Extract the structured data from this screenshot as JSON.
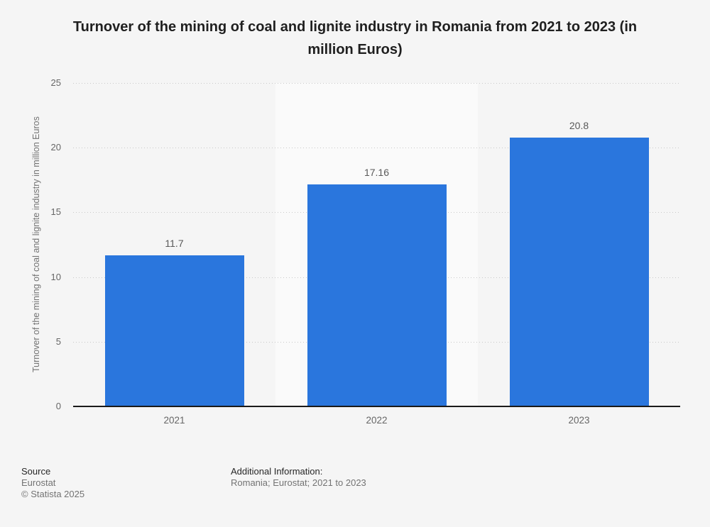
{
  "chart_data": {
    "type": "bar",
    "title": "Turnover of the mining of coal and lignite industry in Romania from 2021 to 2023 (in million Euros)",
    "categories": [
      "2021",
      "2022",
      "2023"
    ],
    "values": [
      11.7,
      17.16,
      20.8
    ],
    "value_labels": [
      "11.7",
      "17.16",
      "20.8"
    ],
    "xlabel": "",
    "ylabel": "Turnover of the mining of coal and lignite industry in million Euros",
    "ylim": [
      0,
      25
    ],
    "yticks": [
      0,
      5,
      10,
      15,
      20,
      25
    ],
    "grid": "horizontal-dotted",
    "legend": "none",
    "bar_color": "#2a76dd",
    "column_band_colors": [
      "#f5f5f5",
      "#fafafa",
      "#f5f5f5"
    ]
  },
  "footer": {
    "source_label": "Source",
    "source_value": "Eurostat",
    "copyright": "© Statista 2025",
    "additional_label": "Additional Information:",
    "additional_value": "Romania; Eurostat; 2021 to 2023"
  }
}
